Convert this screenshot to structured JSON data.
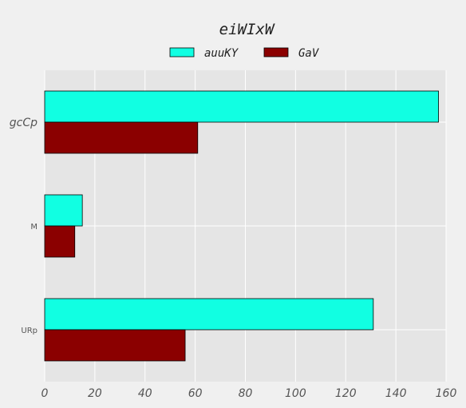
{
  "chart_data": {
    "type": "bar",
    "orientation": "horizontal",
    "title": "eiWIxW",
    "categories": [
      "gcCp",
      "M",
      "URp"
    ],
    "series": [
      {
        "name": "auuKY",
        "values": [
          157,
          15,
          131
        ],
        "color": "#11ffe2"
      },
      {
        "name": "GaV",
        "values": [
          61,
          12,
          56
        ],
        "color": "#8b0000"
      }
    ],
    "xlim": [
      0,
      160
    ],
    "xticks": [
      0,
      20,
      40,
      60,
      80,
      100,
      120,
      140,
      160
    ],
    "xlabel": "",
    "ylabel": "",
    "grid": true,
    "legend_position": "top-center",
    "background": "#e5e5e5"
  }
}
